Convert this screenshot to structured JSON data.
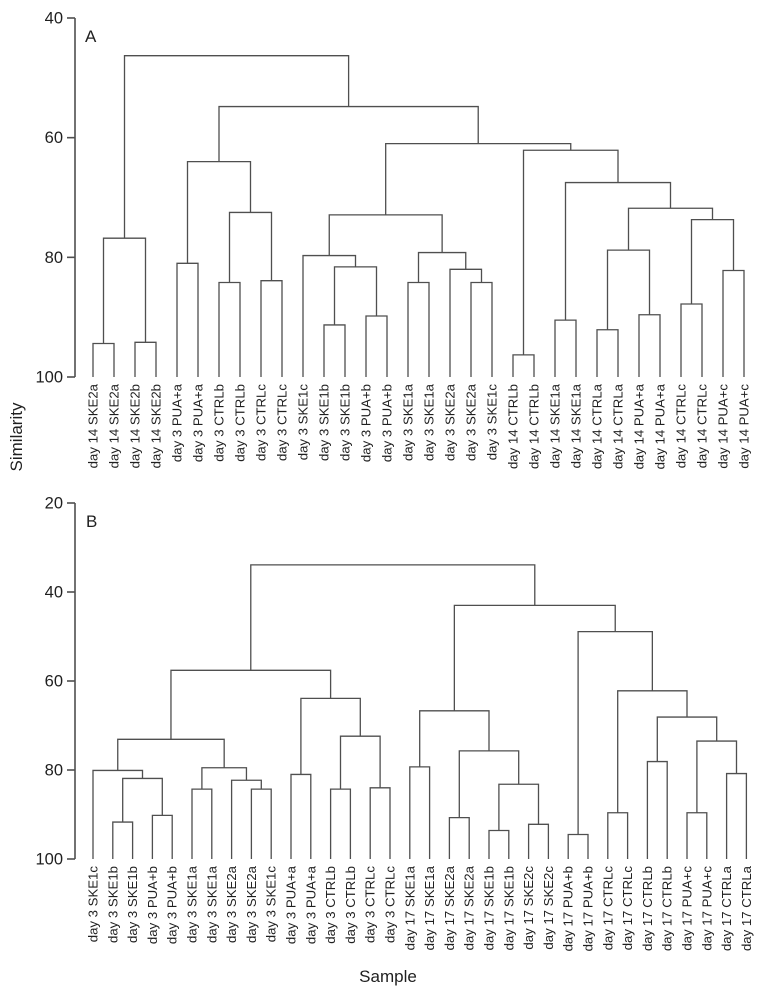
{
  "figure": {
    "ylabel": "Similarity",
    "xlabel": "Sample",
    "line_color": "#4f4f4f",
    "text_color": "#1f1f1f"
  },
  "chart_data": [
    {
      "type": "dendrogram",
      "panel": "A",
      "ylabel": "Similarity",
      "ylim": [
        40,
        100
      ],
      "yticks": [
        40,
        60,
        80,
        100
      ],
      "orientation": "top",
      "leaves": [
        "day 14 SKE2a",
        "day 14 SKE2a",
        "day 14 SKE2b",
        "day 14 SKE2b",
        "day 3 PUA+a",
        "day 3 PUA+a",
        "day 3 CTRLb",
        "day 3 CTRLb",
        "day 3 CTRLc",
        "day 3 CTRLc",
        "day 3 SKE1c",
        "day 3 SKE1b",
        "day 3 SKE1b",
        "day 3 PUA+b",
        "day 3 PUA+b",
        "day 3 SKE1a",
        "day 3 SKE1a",
        "day 3 SKE2a",
        "day 3 SKE2a",
        "day 3 SKE1c",
        "day 14 CTRLb",
        "day 14 CTRLb",
        "day 14 SKE1a",
        "day 14 SKE1a",
        "day 14 CTRLa",
        "day 14 CTRLa",
        "day 14 PUA+a",
        "day 14 PUA+a",
        "day 14 CTRLc",
        "day 14 CTRLc",
        "day 14 PUA+c",
        "day 14 PUA+c"
      ],
      "tree": {
        "h": 46.3,
        "c": [
          {
            "h": 76.8,
            "c": [
              {
                "h": 94.4,
                "c": [
                  0,
                  1
                ]
              },
              {
                "h": 94.2,
                "c": [
                  2,
                  3
                ]
              }
            ]
          },
          {
            "h": 54.8,
            "c": [
              {
                "h": 64.0,
                "c": [
                  {
                    "h": 81.0,
                    "c": [
                      4,
                      5
                    ]
                  },
                  {
                    "h": 72.5,
                    "c": [
                      {
                        "h": 84.2,
                        "c": [
                          6,
                          7
                        ]
                      },
                      {
                        "h": 83.9,
                        "c": [
                          8,
                          9
                        ]
                      }
                    ]
                  }
                ]
              },
              {
                "h": 61.0,
                "c": [
                  {
                    "h": 72.9,
                    "c": [
                      {
                        "h": 79.7,
                        "c": [
                          10,
                          {
                            "h": 81.6,
                            "c": [
                              {
                                "h": 91.3,
                                "c": [
                                  11,
                                  12
                                ]
                              },
                              {
                                "h": 89.8,
                                "c": [
                                  13,
                                  14
                                ]
                              }
                            ]
                          }
                        ]
                      },
                      {
                        "h": 79.2,
                        "c": [
                          {
                            "h": 84.2,
                            "c": [
                              15,
                              16
                            ]
                          },
                          {
                            "h": 82.0,
                            "c": [
                              17,
                              {
                                "h": 84.2,
                                "c": [
                                  18,
                                  19
                                ]
                              }
                            ]
                          }
                        ]
                      }
                    ]
                  },
                  {
                    "h": 62.1,
                    "c": [
                      {
                        "h": 96.3,
                        "c": [
                          20,
                          21
                        ]
                      },
                      {
                        "h": 67.5,
                        "c": [
                          {
                            "h": 90.5,
                            "c": [
                              22,
                              23
                            ]
                          },
                          {
                            "h": 71.8,
                            "c": [
                              {
                                "h": 78.8,
                                "c": [
                                  {
                                    "h": 92.1,
                                    "c": [
                                      24,
                                      25
                                    ]
                                  },
                                  {
                                    "h": 89.6,
                                    "c": [
                                      26,
                                      27
                                    ]
                                  }
                                ]
                              },
                              {
                                "h": 73.7,
                                "c": [
                                  {
                                    "h": 87.8,
                                    "c": [
                                      28,
                                      29
                                    ]
                                  },
                                  {
                                    "h": 82.2,
                                    "c": [
                                      30,
                                      31
                                    ]
                                  }
                                ]
                              }
                            ]
                          }
                        ]
                      }
                    ]
                  }
                ]
              }
            ]
          }
        ]
      }
    },
    {
      "type": "dendrogram",
      "panel": "B",
      "xlabel": "Sample",
      "ylim": [
        20,
        100
      ],
      "yticks": [
        20,
        40,
        60,
        80,
        100
      ],
      "orientation": "top",
      "leaves": [
        "day 3 SKE1c",
        "day 3 SKE1b",
        "day 3 SKE1b",
        "day 3 PUA+b",
        "day 3 PUA+b",
        "day 3 SKE1a",
        "day 3 SKE1a",
        "day 3 SKE2a",
        "day 3 SKE2a",
        "day 3 SKE1c",
        "day 3 PUA+a",
        "day 3 PUA+a",
        "day 3 CTRLb",
        "day 3 CTRLb",
        "day 3 CTRLc",
        "day 3 CTRLc",
        "day 17 SKE1a",
        "day 17 SKE1a",
        "day 17 SKE2a",
        "day 17 SKE2a",
        "day 17 SKE1b",
        "day 17 SKE1b",
        "day 17 SKE2c",
        "day 17 SKE2c",
        "day 17 PUA+b",
        "day 17 PUA+b",
        "day 17 CTRLc",
        "day 17 CTRLc",
        "day 17 CTRLb",
        "day 17 CTRLb",
        "day 17 PUA+c",
        "day 17 PUA+c",
        "day 17 CTRLa",
        "day 17 CTRLa"
      ],
      "tree": {
        "h": 33.9,
        "c": [
          {
            "h": 57.6,
            "c": [
              {
                "h": 73.1,
                "c": [
                  {
                    "h": 80.1,
                    "c": [
                      0,
                      {
                        "h": 81.9,
                        "c": [
                          {
                            "h": 91.7,
                            "c": [
                              1,
                              2
                            ]
                          },
                          {
                            "h": 90.2,
                            "c": [
                              3,
                              4
                            ]
                          }
                        ]
                      }
                    ]
                  },
                  {
                    "h": 79.5,
                    "c": [
                      {
                        "h": 84.3,
                        "c": [
                          5,
                          6
                        ]
                      },
                      {
                        "h": 82.3,
                        "c": [
                          7,
                          {
                            "h": 84.3,
                            "c": [
                              8,
                              9
                            ]
                          }
                        ]
                      }
                    ]
                  }
                ]
              },
              {
                "h": 63.9,
                "c": [
                  {
                    "h": 81.0,
                    "c": [
                      10,
                      11
                    ]
                  },
                  {
                    "h": 72.4,
                    "c": [
                      {
                        "h": 84.3,
                        "c": [
                          12,
                          13
                        ]
                      },
                      {
                        "h": 84.0,
                        "c": [
                          14,
                          15
                        ]
                      }
                    ]
                  }
                ]
              }
            ]
          },
          {
            "h": 43.0,
            "c": [
              {
                "h": 66.7,
                "c": [
                  {
                    "h": 79.3,
                    "c": [
                      16,
                      17
                    ]
                  },
                  {
                    "h": 75.7,
                    "c": [
                      {
                        "h": 90.7,
                        "c": [
                          18,
                          19
                        ]
                      },
                      {
                        "h": 83.2,
                        "c": [
                          {
                            "h": 93.6,
                            "c": [
                              20,
                              21
                            ]
                          },
                          {
                            "h": 92.2,
                            "c": [
                              22,
                              23
                            ]
                          }
                        ]
                      }
                    ]
                  }
                ]
              },
              {
                "h": 48.9,
                "c": [
                  {
                    "h": 94.5,
                    "c": [
                      24,
                      25
                    ]
                  },
                  {
                    "h": 62.2,
                    "c": [
                      {
                        "h": 89.6,
                        "c": [
                          26,
                          27
                        ]
                      },
                      {
                        "h": 68.1,
                        "c": [
                          {
                            "h": 78.1,
                            "c": [
                              28,
                              29
                            ]
                          },
                          {
                            "h": 73.5,
                            "c": [
                              {
                                "h": 89.6,
                                "c": [
                                  30,
                                  31
                                ]
                              },
                              {
                                "h": 80.8,
                                "c": [
                                  32,
                                  33
                                ]
                              }
                            ]
                          }
                        ]
                      }
                    ]
                  }
                ]
              }
            ]
          }
        ]
      }
    }
  ]
}
